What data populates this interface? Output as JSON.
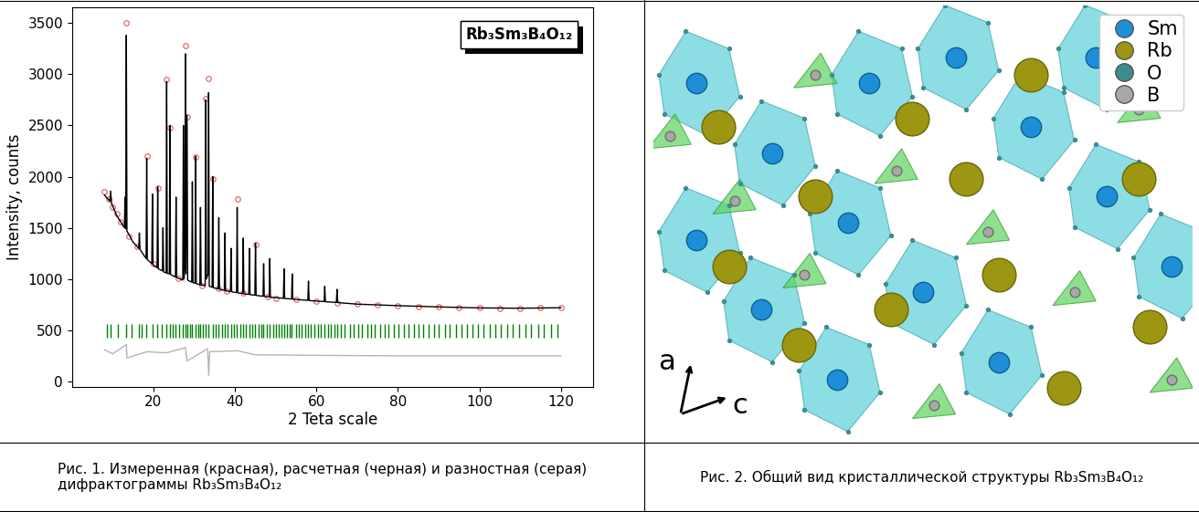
{
  "chart_data": {
    "type": "line",
    "title": "Rb₃Sm₃B₄O₁₂",
    "x_label": "2 Teta scale",
    "y_label": "Intensity, counts",
    "xlim": [
      0,
      128
    ],
    "xticks": [
      20,
      40,
      60,
      80,
      100,
      120
    ],
    "ylim": [
      -50,
      3650
    ],
    "yticks": [
      0,
      500,
      1000,
      1500,
      2000,
      2500,
      3000,
      3500
    ],
    "grid": false,
    "series": [
      {
        "type": "scatter",
        "color": "#e05a5a",
        "marker": "circle",
        "x": [
          8,
          9,
          10,
          11,
          12,
          13.35,
          14,
          16,
          18.35,
          20,
          21.05,
          23.25,
          24.05,
          26,
          27.85,
          28.25,
          30.35,
          32,
          32.85,
          33.55,
          34.55,
          36,
          38,
          40.55,
          42,
          45.05,
          48,
          50,
          55,
          60,
          65,
          70,
          75,
          80,
          85,
          90,
          95,
          100,
          105,
          110,
          115,
          120
        ],
        "values": [
          1850,
          1780,
          1700,
          1640,
          1560,
          3500,
          1420,
          1320,
          2200,
          1150,
          1890,
          2950,
          2480,
          1010,
          3280,
          2580,
          2190,
          935,
          2760,
          2960,
          1980,
          910,
          880,
          1780,
          860,
          1340,
          825,
          815,
          800,
          785,
          770,
          758,
          748,
          740,
          732,
          728,
          722,
          718,
          716,
          715,
          717,
          720
        ]
      },
      {
        "type": "line",
        "color": "#000000",
        "line_style": "solid",
        "x": [
          8,
          9.3,
          9.5,
          9.7,
          11,
          12.9,
          13.0,
          13.1,
          13.2,
          13.35,
          13.5,
          15,
          16.4,
          16.55,
          16.7,
          18.2,
          18.35,
          18.5,
          19.6,
          19.75,
          19.9,
          20.9,
          21.05,
          21.2,
          22.2,
          22.35,
          22.5,
          23.1,
          23.25,
          23.4,
          23.9,
          24.05,
          24.2,
          25.4,
          25.55,
          25.7,
          27.2,
          27.35,
          27.5,
          27.7,
          27.85,
          28.0,
          28.25,
          28.4,
          29.4,
          29.55,
          29.7,
          30.2,
          30.35,
          30.5,
          31.4,
          31.55,
          31.7,
          32.7,
          32.85,
          33.0,
          33.4,
          33.55,
          33.7,
          34.4,
          34.55,
          34.7,
          35.9,
          36.05,
          36.2,
          37.4,
          37.55,
          37.7,
          38.9,
          39.05,
          39.2,
          40.4,
          40.55,
          40.7,
          41.9,
          42.05,
          42.2,
          43.4,
          43.55,
          43.7,
          44.9,
          45.05,
          45.2,
          46.9,
          47.05,
          47.2,
          48.4,
          48.55,
          48.7,
          51.9,
          52.05,
          52.2,
          53.9,
          54.05,
          54.2,
          57.9,
          58.05,
          58.2,
          61.9,
          62.05,
          62.2,
          64.9,
          65.05,
          65.2,
          70,
          80,
          90,
          100,
          110,
          120
        ],
        "values": [
          1820,
          1760,
          1860,
          1740,
          1620,
          1500,
          1800,
          1500,
          1490,
          3380,
          1470,
          1360,
          1300,
          1450,
          1290,
          1200,
          2180,
          1190,
          1150,
          1830,
          1140,
          1110,
          1900,
          1100,
          1080,
          1500,
          1070,
          1060,
          2930,
          1055,
          1050,
          2500,
          1045,
          1020,
          1800,
          1015,
          990,
          2500,
          1000,
          1100,
          3200,
          1050,
          2600,
          990,
          970,
          1950,
          965,
          960,
          2200,
          955,
          945,
          1700,
          940,
          935,
          2750,
          1000,
          1050,
          2820,
          930,
          920,
          2000,
          915,
          905,
          1600,
          900,
          890,
          1450,
          885,
          878,
          1300,
          875,
          868,
          1700,
          865,
          858,
          1400,
          855,
          850,
          1300,
          848,
          842,
          1350,
          840,
          832,
          1150,
          830,
          825,
          1200,
          823,
          812,
          1100,
          810,
          805,
          1050,
          803,
          792,
          980,
          790,
          780,
          930,
          778,
          772,
          900,
          770,
          755,
          740,
          728,
          718,
          715,
          720
        ]
      },
      {
        "type": "line",
        "color": "#b4b4b4",
        "line_style": "solid",
        "x": [
          8,
          10,
          13.35,
          13.5,
          18.35,
          23.25,
          27.85,
          28.25,
          33.3,
          33.55,
          33.8,
          40.55,
          45,
          60,
          80,
          100,
          120
        ],
        "values": [
          310,
          270,
          360,
          230,
          290,
          280,
          330,
          200,
          320,
          60,
          290,
          300,
          260,
          255,
          250,
          250,
          250
        ]
      }
    ],
    "bragg_marks": {
      "color": "#008000",
      "ymin": 430,
      "ymax": 560,
      "x": [
        8.6,
        9.4,
        11.2,
        13.3,
        14.6,
        16.5,
        17.2,
        18.3,
        19.7,
        21.0,
        22.1,
        23.2,
        24.0,
        24.8,
        25.5,
        26.3,
        27.3,
        27.8,
        28.3,
        29.0,
        29.5,
        30.3,
        31.0,
        31.5,
        32.2,
        32.8,
        33.5,
        34.5,
        35.2,
        36.0,
        36.8,
        37.5,
        38.3,
        39.0,
        39.8,
        40.5,
        41.3,
        42.0,
        42.7,
        43.5,
        44.3,
        45.0,
        45.8,
        46.4,
        47.0,
        47.8,
        48.5,
        49.3,
        50.1,
        50.8,
        51.5,
        52.0,
        52.8,
        53.5,
        54.0,
        54.9,
        55.6,
        56.4,
        57.2,
        58.0,
        58.7,
        59.5,
        60.3,
        61.1,
        62.0,
        62.8,
        63.5,
        64.4,
        65.0,
        66.1,
        67.0,
        68.2,
        69.1,
        70.3,
        71.2,
        72.4,
        73.5,
        74.3,
        75.6,
        76.8,
        77.7,
        79.0,
        80.2,
        81.4,
        82.5,
        83.9,
        85.0,
        86.2,
        87.6,
        88.9,
        90.1,
        91.5,
        92.8,
        94.2,
        95.5,
        96.9,
        98.3,
        99.6,
        101.0,
        102.5,
        104.0,
        105.3,
        106.9,
        108.2,
        109.8,
        111.3,
        112.7,
        114.4,
        115.9,
        117.5,
        119.1
      ]
    }
  },
  "structure": {
    "legend": [
      "Sm",
      "Rb",
      "O",
      "B"
    ],
    "colors": [
      "#1e8fd6",
      "#9c9612",
      "#3b8d8f",
      "#a8a8a8"
    ],
    "axis_labels": [
      "a",
      "c"
    ]
  },
  "captions": [
    "Рис. 1. Измеренная (красная), расчетная (черная) и разностная (серая) дифрактограммы Rb₃Sm₃B₄O₁₂",
    "Рис. 2. Общий вид кристаллической структуры Rb₃Sm₃B₄O₁₂"
  ]
}
